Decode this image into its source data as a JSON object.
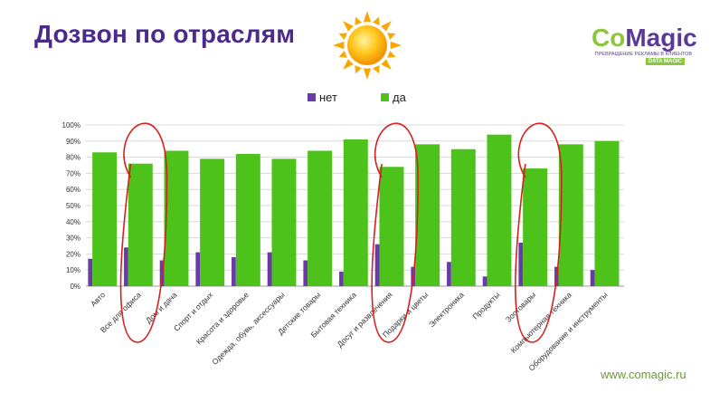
{
  "slide": {
    "title": "Дозвон по отраслям",
    "url": "www.comagic.ru"
  },
  "logo": {
    "brand_co": "Co",
    "brand_magic": "Magic",
    "tagline": "ПРЕВРАЩЕНИЕ РЕКЛАМЫ В КЛИЕНТОВ",
    "badge": "DATA MAGIC"
  },
  "colors": {
    "title": "#4a2a8a",
    "series_no": "#6a3aa8",
    "series_yes": "#4cc21a",
    "annotation": "#d62020",
    "url": "#6a9a3a"
  },
  "icons": [
    "sun-icon",
    "comagic-logo"
  ],
  "chart_data": {
    "type": "bar",
    "categories": [
      "Авто",
      "Все для офиса",
      "Дом и дача",
      "Спорт и отдых",
      "Красота и здоровье",
      "Одежда, обувь, аксессуары",
      "Детские товары",
      "Бытовая техника",
      "Досуг и развлечения",
      "Подарки и цветы",
      "Электроника",
      "Продукты",
      "Зоотовары",
      "Компьютерная техника",
      "Оборудование и инструменты"
    ],
    "series": [
      {
        "name": "нет",
        "color": "#6a3aa8",
        "values": [
          17,
          24,
          16,
          21,
          18,
          21,
          16,
          9,
          26,
          12,
          15,
          6,
          27,
          12,
          10
        ]
      },
      {
        "name": "да",
        "color": "#4cc21a",
        "values": [
          83,
          76,
          84,
          79,
          82,
          79,
          84,
          91,
          74,
          88,
          85,
          94,
          73,
          88,
          90
        ]
      }
    ],
    "y_ticks": [
      "0%",
      "10%",
      "20%",
      "30%",
      "40%",
      "50%",
      "60%",
      "70%",
      "80%",
      "90%",
      "100%"
    ],
    "ylim": [
      0,
      100
    ],
    "grid": true,
    "legend": "top-center",
    "annotations": [
      "Все для офиса",
      "Досуг и развлечения",
      "Зоотовары"
    ]
  }
}
